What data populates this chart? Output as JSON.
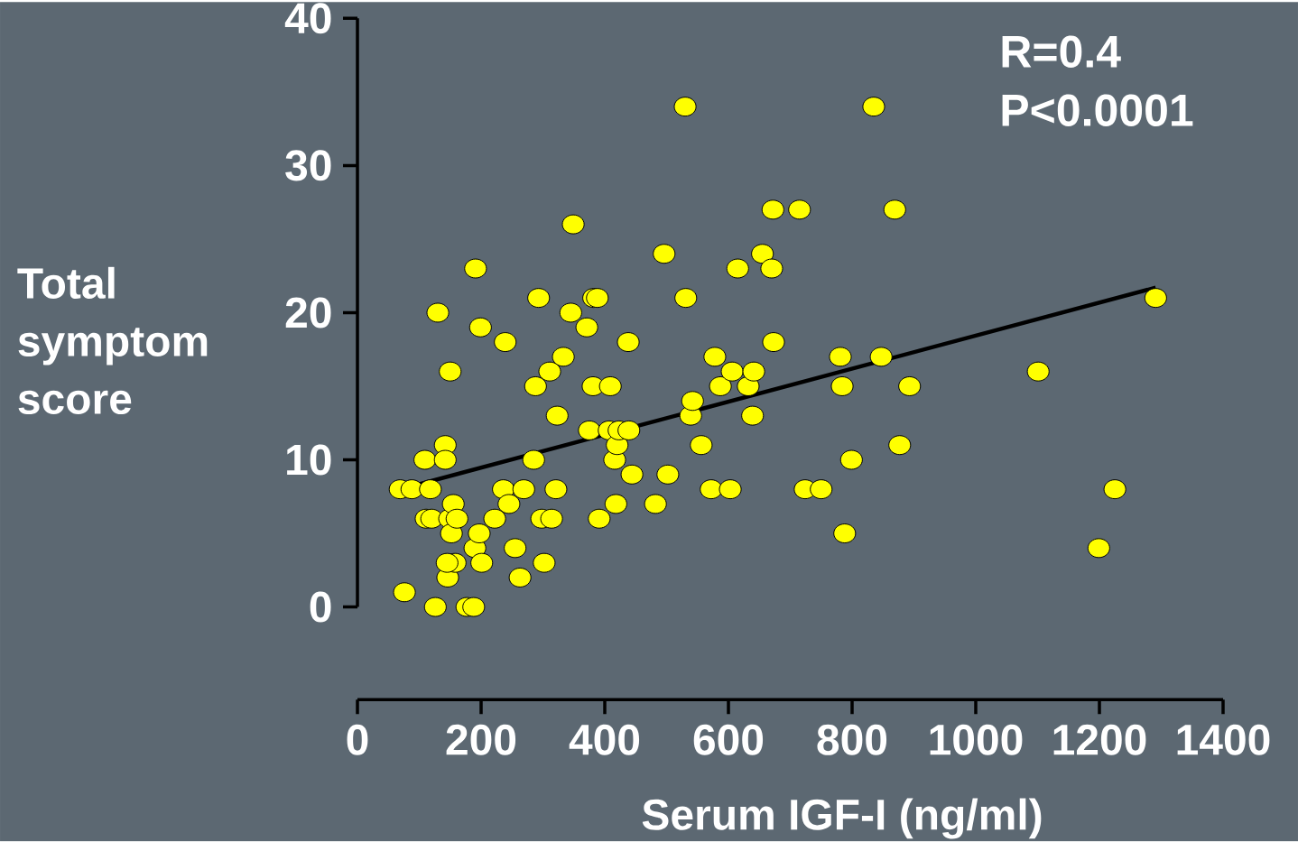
{
  "chart_data": {
    "type": "scatter",
    "xlabel": "Serum IGF-I (ng/ml)",
    "ylabel": "Total symptom score",
    "annotations": [
      "R=0.4",
      "P<0.0001"
    ],
    "xlim": [
      0,
      1400
    ],
    "ylim": [
      -6.3,
      40
    ],
    "xticks": [
      0,
      200,
      400,
      600,
      800,
      1000,
      1200,
      1400
    ],
    "yticks": [
      0,
      10,
      20,
      30,
      40
    ],
    "grid": false,
    "marker": "circle",
    "series": [
      {
        "type": "scatter",
        "color": "#ffff00",
        "x": [
          69,
          88,
          118,
          76,
          109,
          111,
          120,
          126,
          130,
          142,
          142,
          150,
          146,
          149,
          152,
          155,
          158,
          145,
          161,
          177,
          188,
          190,
          191,
          197,
          199,
          201,
          222,
          236,
          239,
          245,
          255,
          263,
          269,
          285,
          288,
          293,
          298,
          302,
          311,
          314,
          321,
          323,
          333,
          345,
          349,
          371,
          375,
          381,
          382,
          388,
          391,
          407,
          409,
          416,
          418,
          420,
          423,
          439,
          438,
          444,
          482,
          496,
          502,
          530,
          531,
          539,
          542,
          556,
          572,
          578,
          587,
          603,
          606,
          615,
          632,
          641,
          639,
          655,
          670,
          673,
          672,
          715,
          724,
          750,
          781,
          784,
          788,
          799,
          835,
          847,
          869,
          877,
          893,
          1101,
          1199,
          1225,
          1291
        ],
        "values": [
          8,
          8,
          8,
          1,
          10,
          6,
          6,
          0,
          20,
          11,
          10,
          16,
          2,
          6,
          5,
          7,
          3,
          3,
          6,
          0,
          0,
          4,
          23,
          5,
          19,
          3,
          6,
          8,
          18,
          7,
          4,
          2,
          8,
          10,
          15,
          21,
          6,
          3,
          16,
          6,
          8,
          13,
          17,
          20,
          26,
          19,
          12,
          15,
          21,
          21,
          6,
          12,
          15,
          10,
          7,
          11,
          12,
          12,
          18,
          9,
          7,
          24,
          9,
          34,
          21,
          13,
          14,
          11,
          8,
          17,
          15,
          8,
          16,
          23,
          15,
          16,
          13,
          24,
          23,
          18,
          27,
          27,
          8,
          8,
          17,
          15,
          5,
          10,
          34,
          17,
          27,
          11,
          15,
          16,
          4,
          8,
          21
        ]
      },
      {
        "type": "line",
        "marker": "none",
        "color": "#000000",
        "x": [
          69,
          1291
        ],
        "values": [
          8,
          21.7
        ]
      }
    ]
  }
}
